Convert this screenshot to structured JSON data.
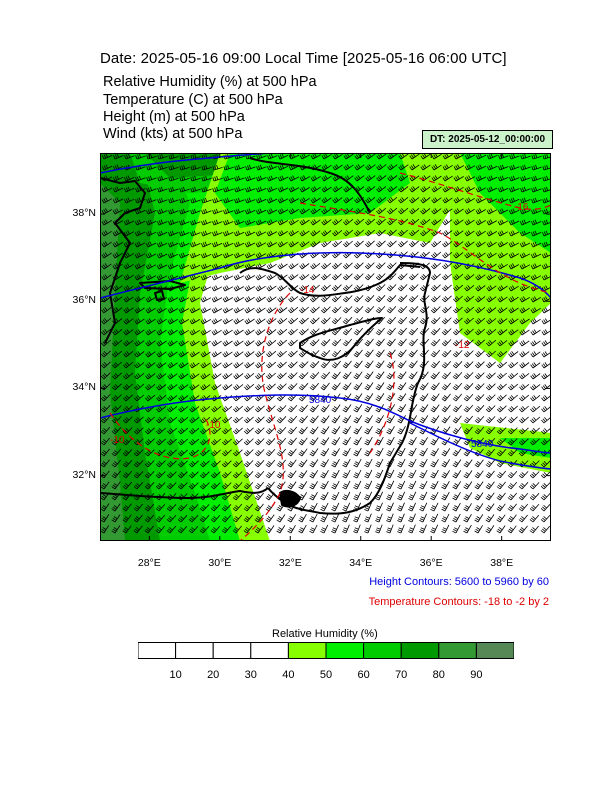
{
  "title": "Date: 2025-05-16  09:00 Local Time [2025-05-16  06:00 UTC]",
  "fields": [
    "Relative Humidity   (%)     at   500 hPa",
    "Temperature   (C)     at   500 hPa",
    "Height   (m)     at   500 hPa",
    "Wind   (kts)     at   500 hPa"
  ],
  "dt_label": "DT: 2025-05-12_00:00:00",
  "map": {
    "lon_range": [
      26.6,
      39.4
    ],
    "lat_range": [
      30.5,
      39.4
    ],
    "lat_ticks": [
      {
        "value": 32,
        "label": "32°N"
      },
      {
        "value": 34,
        "label": "34°N"
      },
      {
        "value": 36,
        "label": "36°N"
      },
      {
        "value": 38,
        "label": "38°N"
      }
    ],
    "lon_ticks": [
      {
        "value": 28,
        "label": "28°E"
      },
      {
        "value": 30,
        "label": "30°E"
      },
      {
        "value": 32,
        "label": "32°E"
      },
      {
        "value": 34,
        "label": "34°E"
      },
      {
        "value": 36,
        "label": "36°E"
      },
      {
        "value": 38,
        "label": "38°E"
      }
    ],
    "height_contour_labels": [
      "5840",
      "5840"
    ],
    "temperature_contour_labels": [
      "-16",
      "-14",
      "-12",
      "-10",
      "-10"
    ],
    "colors": {
      "height": "#0000dd",
      "temperature": "#dd0000",
      "coast": "#000000",
      "wind": "#000000"
    }
  },
  "height_note": "Height Contours: 5600 to 5960 by 60",
  "temp_note": "Temperature Contours: -18 to -2 by 2",
  "legend": {
    "title": "Relative Humidity  (%)",
    "colors": [
      "#ffffff",
      "#ffffff",
      "#ffffff",
      "#ffffff",
      "#88ff00",
      "#00ee00",
      "#00cc00",
      "#009900",
      "#339933",
      "#558855"
    ],
    "labels": [
      "10",
      "20",
      "30",
      "40",
      "50",
      "60",
      "70",
      "80",
      "90"
    ]
  }
}
